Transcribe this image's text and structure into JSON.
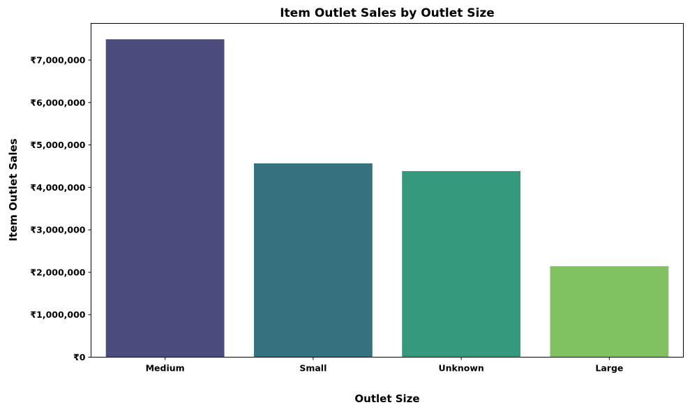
{
  "chart_data": {
    "type": "bar",
    "title": "Item Outlet Sales by Outlet Size",
    "xlabel": "Outlet Size",
    "ylabel": "Item Outlet Sales",
    "categories": [
      "Medium",
      "Small",
      "Unknown",
      "Large"
    ],
    "values": [
      7489719,
      4566212,
      4384383,
      2143646
    ],
    "colors": [
      "#4a4c7d",
      "#36717f",
      "#359a7d",
      "#80c262"
    ],
    "ylim": [
      0,
      7864205
    ],
    "yticks": [
      0,
      1000000,
      2000000,
      3000000,
      4000000,
      5000000,
      6000000,
      7000000
    ],
    "ytick_labels": [
      "₹0",
      "₹1,000,000",
      "₹2,000,000",
      "₹3,000,000",
      "₹4,000,000",
      "₹5,000,000",
      "₹6,000,000",
      "₹7,000,000"
    ],
    "grid": false,
    "legend": "none"
  }
}
